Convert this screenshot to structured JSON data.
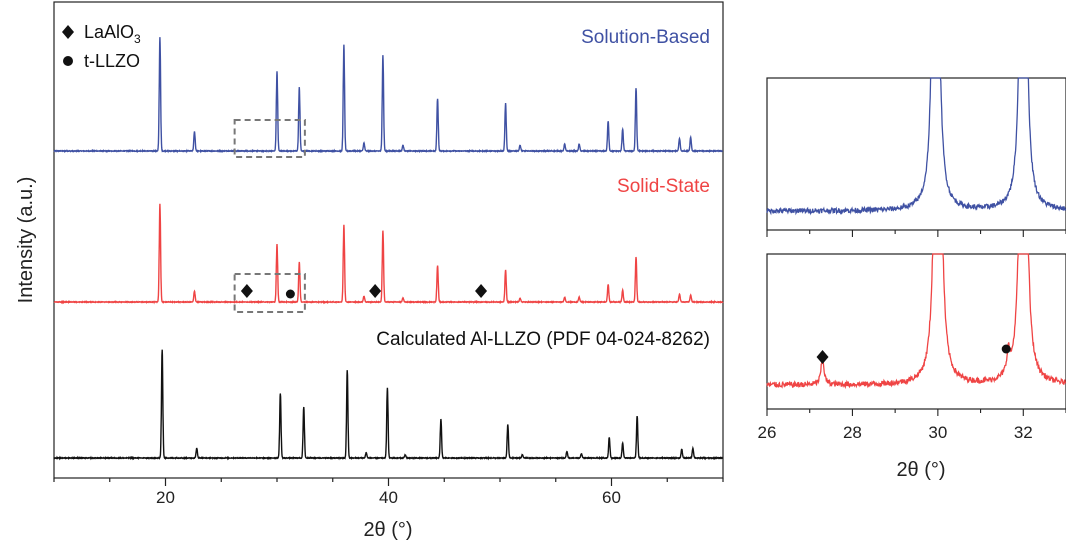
{
  "chart_data": [
    {
      "type": "line",
      "xlabel": "2θ (°)",
      "ylabel": "Intensity (a.u.)",
      "xlim": [
        10,
        70
      ],
      "xticks": [
        20,
        40,
        60
      ],
      "y_ticks_shown": false,
      "legend": {
        "placement": "top-left",
        "entries": [
          {
            "marker": "diamond",
            "label_main": "LaAlO",
            "label_sub": "3"
          },
          {
            "marker": "circle",
            "label_main": "t-LLZO",
            "label_sub": ""
          }
        ]
      },
      "series": [
        {
          "name": "Solution-Based",
          "color": "#3f51a3",
          "baseline_level": 2,
          "peaks": [
            [
              19.5,
              1.0
            ],
            [
              22.6,
              0.17
            ],
            [
              30.0,
              0.7
            ],
            [
              32.0,
              0.56
            ],
            [
              36.0,
              0.93
            ],
            [
              37.8,
              0.07
            ],
            [
              39.5,
              0.84
            ],
            [
              41.3,
              0.05
            ],
            [
              44.4,
              0.46
            ],
            [
              50.5,
              0.42
            ],
            [
              51.8,
              0.05
            ],
            [
              55.8,
              0.06
            ],
            [
              57.1,
              0.06
            ],
            [
              59.7,
              0.26
            ],
            [
              61.0,
              0.19
            ],
            [
              62.2,
              0.55
            ],
            [
              66.1,
              0.11
            ],
            [
              67.1,
              0.12
            ]
          ]
        },
        {
          "name": "Solid-State",
          "color": "#ef4444",
          "baseline_level": 1,
          "peaks": [
            [
              19.5,
              1.0
            ],
            [
              22.6,
              0.11
            ],
            [
              30.0,
              0.59
            ],
            [
              32.0,
              0.41
            ],
            [
              36.0,
              0.79
            ],
            [
              37.8,
              0.06
            ],
            [
              39.5,
              0.73
            ],
            [
              41.3,
              0.04
            ],
            [
              44.4,
              0.37
            ],
            [
              50.5,
              0.33
            ],
            [
              51.8,
              0.04
            ],
            [
              55.8,
              0.05
            ],
            [
              57.1,
              0.05
            ],
            [
              59.7,
              0.18
            ],
            [
              61.0,
              0.12
            ],
            [
              62.2,
              0.46
            ],
            [
              66.1,
              0.08
            ],
            [
              67.1,
              0.07
            ]
          ]
        },
        {
          "name": "Calculated Al-LLZO (PDF 04-024-8262)",
          "color": "#111111",
          "baseline_level": 0,
          "peaks": [
            [
              19.7,
              1.0
            ],
            [
              22.8,
              0.09
            ],
            [
              30.3,
              0.6
            ],
            [
              32.4,
              0.47
            ],
            [
              36.3,
              0.81
            ],
            [
              38.0,
              0.05
            ],
            [
              39.9,
              0.65
            ],
            [
              41.5,
              0.03
            ],
            [
              44.7,
              0.36
            ],
            [
              50.7,
              0.31
            ],
            [
              52.0,
              0.03
            ],
            [
              56.0,
              0.06
            ],
            [
              57.3,
              0.04
            ],
            [
              59.8,
              0.19
            ],
            [
              61.0,
              0.14
            ],
            [
              62.3,
              0.39
            ],
            [
              66.3,
              0.08
            ],
            [
              67.3,
              0.09
            ]
          ]
        }
      ],
      "markers": [
        {
          "shape": "diamond",
          "x": 27.3,
          "series": "Solid-State"
        },
        {
          "shape": "circle",
          "x": 31.2,
          "series": "Solid-State"
        },
        {
          "shape": "diamond",
          "x": 38.8,
          "series": "Solid-State"
        },
        {
          "shape": "diamond",
          "x": 48.3,
          "series": "Solid-State"
        }
      ],
      "zoom_regions": [
        {
          "series": "Solution-Based",
          "x_range": [
            26.2,
            32.5
          ],
          "style": "dashed",
          "color": "#777777"
        },
        {
          "series": "Solid-State",
          "x_range": [
            26.2,
            32.5
          ],
          "style": "dashed",
          "color": "#777777"
        }
      ]
    },
    {
      "type": "line",
      "xlabel": "2θ (°)",
      "xlim": [
        26,
        33
      ],
      "xticks": [
        26,
        28,
        30,
        32
      ],
      "panels": [
        {
          "series": "Solution-Based",
          "color": "#3f51a3",
          "peaks": [
            [
              29.95,
              5.0
            ],
            [
              32.0,
              5.0
            ]
          ],
          "noise": 0.02
        },
        {
          "series": "Solid-State",
          "color": "#ef4444",
          "peaks": [
            [
              27.3,
              0.1
            ],
            [
              30.0,
              5.0
            ],
            [
              32.0,
              5.0
            ],
            [
              31.65,
              0.08
            ]
          ],
          "noise": 0.02,
          "markers": [
            {
              "shape": "diamond",
              "x": 27.3
            },
            {
              "shape": "circle",
              "x": 31.6
            }
          ]
        }
      ]
    }
  ]
}
